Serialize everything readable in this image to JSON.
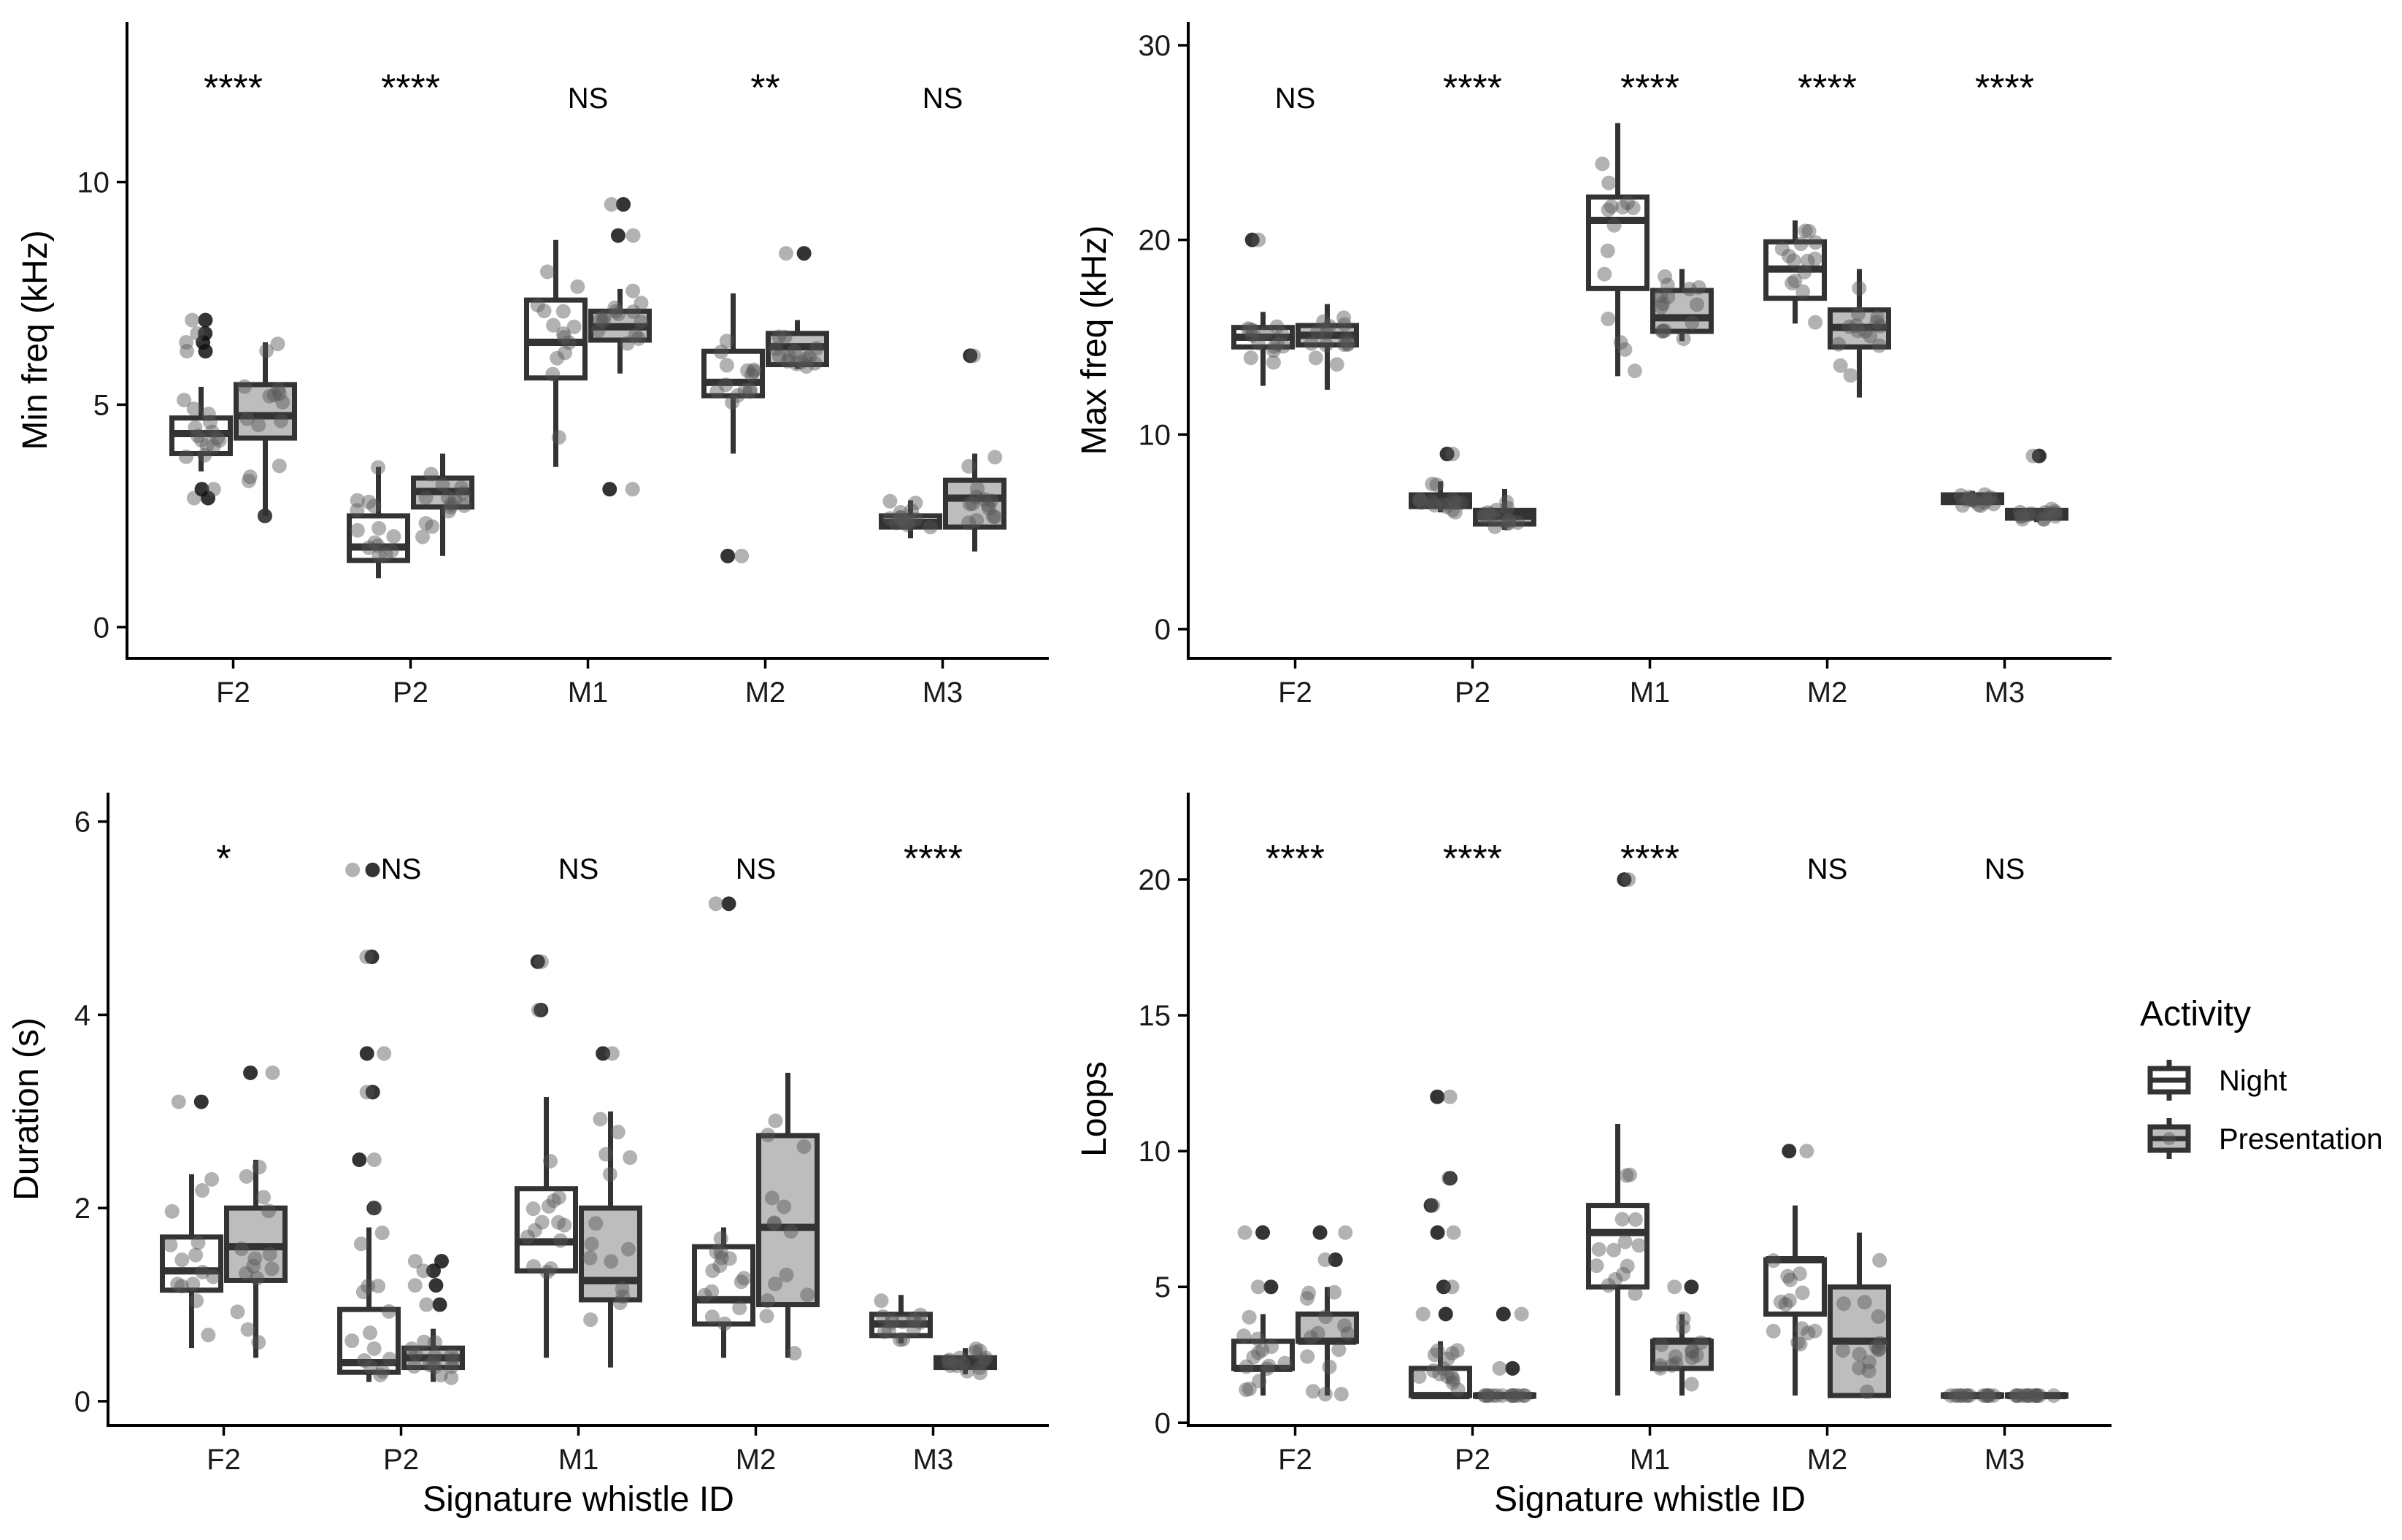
{
  "legend": {
    "title": "Activity",
    "items": [
      {
        "label": "Night",
        "fill": "#ffffff"
      },
      {
        "label": "Presentation",
        "fill": "#bdbdbd"
      }
    ]
  },
  "colors": {
    "box_stroke": "#333333",
    "point": "#555555",
    "point_opacity": 0.45,
    "night_fill": "#ffffff",
    "presentation_fill": "#bdbdbd"
  },
  "chart_data": [
    {
      "id": "min-freq",
      "type": "boxplot",
      "xlabel": "",
      "ylabel": "Min freq (kHz)",
      "ylim": [
        -0.7,
        13.6
      ],
      "yticks": [
        0,
        5,
        10
      ],
      "categories": [
        "F2",
        "P2",
        "M1",
        "M2",
        "M3"
      ],
      "significance": [
        "****",
        "****",
        "NS",
        "**",
        "NS"
      ],
      "series": [
        {
          "name": "Night",
          "boxes": [
            {
              "q1": 3.9,
              "median": 4.35,
              "q3": 4.7,
              "lo": 3.5,
              "hi": 5.4,
              "outliers": [
                2.9,
                3.1,
                6.2,
                6.4,
                6.6,
                6.9
              ]
            },
            {
              "q1": 1.5,
              "median": 1.8,
              "q3": 2.5,
              "lo": 1.1,
              "hi": 3.6,
              "outliers": []
            },
            {
              "q1": 5.6,
              "median": 6.4,
              "q3": 7.35,
              "lo": 3.6,
              "hi": 8.7,
              "outliers": []
            },
            {
              "q1": 5.2,
              "median": 5.5,
              "q3": 6.2,
              "lo": 3.9,
              "hi": 7.5,
              "outliers": [
                1.6
              ]
            },
            {
              "q1": 2.25,
              "median": 2.35,
              "q3": 2.5,
              "lo": 2.0,
              "hi": 2.85,
              "outliers": []
            }
          ]
        },
        {
          "name": "Presentation",
          "boxes": [
            {
              "q1": 4.25,
              "median": 4.75,
              "q3": 5.45,
              "lo": 2.5,
              "hi": 6.4,
              "outliers": [
                2.5
              ]
            },
            {
              "q1": 2.7,
              "median": 3.05,
              "q3": 3.35,
              "lo": 1.6,
              "hi": 3.9,
              "outliers": []
            },
            {
              "q1": 6.45,
              "median": 6.75,
              "q3": 7.1,
              "lo": 5.7,
              "hi": 7.6,
              "outliers": [
                3.1,
                8.8,
                9.5
              ]
            },
            {
              "q1": 5.9,
              "median": 6.3,
              "q3": 6.6,
              "lo": 5.8,
              "hi": 6.9,
              "outliers": [
                8.4
              ]
            },
            {
              "q1": 2.25,
              "median": 2.9,
              "q3": 3.3,
              "lo": 1.7,
              "hi": 3.9,
              "outliers": [
                6.1
              ]
            }
          ]
        }
      ]
    },
    {
      "id": "max-freq",
      "type": "boxplot",
      "xlabel": "",
      "ylabel": "Max freq (kHz)",
      "ylim": [
        -1.5,
        31.2
      ],
      "yticks": [
        0,
        10,
        20,
        30
      ],
      "categories": [
        "F2",
        "P2",
        "M1",
        "M2",
        "M3"
      ],
      "significance": [
        "NS",
        "****",
        "****",
        "****",
        "****"
      ],
      "series": [
        {
          "name": "Night",
          "boxes": [
            {
              "q1": 14.5,
              "median": 15.0,
              "q3": 15.5,
              "lo": 12.5,
              "hi": 16.3,
              "outliers": [
                20.0
              ]
            },
            {
              "q1": 6.3,
              "median": 6.6,
              "q3": 6.9,
              "lo": 6.0,
              "hi": 7.6,
              "outliers": [
                9.0
              ]
            },
            {
              "q1": 17.5,
              "median": 21.0,
              "q3": 22.2,
              "lo": 13.0,
              "hi": 26.0,
              "outliers": []
            },
            {
              "q1": 17.0,
              "median": 18.5,
              "q3": 19.9,
              "lo": 15.7,
              "hi": 21.0,
              "outliers": []
            },
            {
              "q1": 6.5,
              "median": 6.7,
              "q3": 6.9,
              "lo": 6.3,
              "hi": 7.1,
              "outliers": []
            }
          ]
        },
        {
          "name": "Presentation",
          "boxes": [
            {
              "q1": 14.6,
              "median": 15.1,
              "q3": 15.6,
              "lo": 12.3,
              "hi": 16.7,
              "outliers": []
            },
            {
              "q1": 5.4,
              "median": 5.8,
              "q3": 6.1,
              "lo": 5.1,
              "hi": 7.2,
              "outliers": []
            },
            {
              "q1": 15.3,
              "median": 16.0,
              "q3": 17.4,
              "lo": 14.8,
              "hi": 18.5,
              "outliers": []
            },
            {
              "q1": 14.5,
              "median": 15.5,
              "q3": 16.4,
              "lo": 11.9,
              "hi": 18.5,
              "outliers": []
            },
            {
              "q1": 5.7,
              "median": 5.9,
              "q3": 6.1,
              "lo": 5.5,
              "hi": 6.2,
              "outliers": [
                8.9
              ]
            }
          ]
        }
      ]
    },
    {
      "id": "duration",
      "type": "boxplot",
      "xlabel": "Signature whistle ID",
      "ylabel": "Duration (s)",
      "ylim": [
        -0.25,
        6.3
      ],
      "yticks": [
        0,
        2,
        4,
        6
      ],
      "categories": [
        "F2",
        "P2",
        "M1",
        "M2",
        "M3"
      ],
      "significance": [
        "*",
        "NS",
        "NS",
        "NS",
        "****"
      ],
      "series": [
        {
          "name": "Night",
          "boxes": [
            {
              "q1": 1.15,
              "median": 1.35,
              "q3": 1.7,
              "lo": 0.55,
              "hi": 2.35,
              "outliers": [
                3.1
              ]
            },
            {
              "q1": 0.3,
              "median": 0.4,
              "q3": 0.95,
              "lo": 0.2,
              "hi": 1.8,
              "outliers": [
                2.0,
                2.5,
                3.2,
                3.6,
                4.6,
                5.5
              ]
            },
            {
              "q1": 1.35,
              "median": 1.65,
              "q3": 2.2,
              "lo": 0.45,
              "hi": 3.15,
              "outliers": [
                4.05,
                4.55
              ]
            },
            {
              "q1": 0.8,
              "median": 1.05,
              "q3": 1.6,
              "lo": 0.45,
              "hi": 1.8,
              "outliers": [
                5.15
              ]
            },
            {
              "q1": 0.68,
              "median": 0.8,
              "q3": 0.9,
              "lo": 0.6,
              "hi": 1.1,
              "outliers": []
            }
          ]
        },
        {
          "name": "Presentation",
          "boxes": [
            {
              "q1": 1.25,
              "median": 1.6,
              "q3": 2.0,
              "lo": 0.45,
              "hi": 2.5,
              "outliers": [
                3.4
              ]
            },
            {
              "q1": 0.35,
              "median": 0.45,
              "q3": 0.55,
              "lo": 0.2,
              "hi": 0.75,
              "outliers": [
                1.0,
                1.2,
                1.35,
                1.45
              ]
            },
            {
              "q1": 1.05,
              "median": 1.25,
              "q3": 2.0,
              "lo": 0.35,
              "hi": 3.0,
              "outliers": [
                3.6
              ]
            },
            {
              "q1": 1.0,
              "median": 1.8,
              "q3": 2.75,
              "lo": 0.45,
              "hi": 3.4,
              "outliers": []
            },
            {
              "q1": 0.35,
              "median": 0.4,
              "q3": 0.45,
              "lo": 0.28,
              "hi": 0.55,
              "outliers": []
            }
          ]
        }
      ]
    },
    {
      "id": "loops",
      "type": "boxplot",
      "xlabel": "Signature whistle ID",
      "ylabel": "Loops",
      "ylim": [
        -0.1,
        23.2
      ],
      "yticks": [
        0,
        5,
        10,
        15,
        20
      ],
      "categories": [
        "F2",
        "P2",
        "M1",
        "M2",
        "M3"
      ],
      "significance": [
        "****",
        "****",
        "****",
        "NS",
        "NS"
      ],
      "series": [
        {
          "name": "Night",
          "boxes": [
            {
              "q1": 2.0,
              "median": 2.0,
              "q3": 3.0,
              "lo": 1.0,
              "hi": 4.0,
              "outliers": [
                5.0,
                7.0
              ]
            },
            {
              "q1": 1.0,
              "median": 1.0,
              "q3": 2.0,
              "lo": 1.0,
              "hi": 3.0,
              "outliers": [
                4.0,
                5.0,
                7.0,
                8.0,
                9.0,
                12.0
              ]
            },
            {
              "q1": 5.0,
              "median": 7.0,
              "q3": 8.0,
              "lo": 1.0,
              "hi": 11.0,
              "outliers": [
                20.0
              ]
            },
            {
              "q1": 4.0,
              "median": 6.0,
              "q3": 6.0,
              "lo": 1.0,
              "hi": 8.0,
              "outliers": [
                10.0
              ]
            },
            {
              "q1": 1.0,
              "median": 1.0,
              "q3": 1.0,
              "lo": 1.0,
              "hi": 1.0,
              "outliers": []
            }
          ]
        },
        {
          "name": "Presentation",
          "boxes": [
            {
              "q1": 3.0,
              "median": 3.0,
              "q3": 4.0,
              "lo": 1.0,
              "hi": 5.0,
              "outliers": [
                6.0,
                7.0
              ]
            },
            {
              "q1": 1.0,
              "median": 1.0,
              "q3": 1.0,
              "lo": 1.0,
              "hi": 1.0,
              "outliers": [
                2.0,
                4.0
              ]
            },
            {
              "q1": 2.0,
              "median": 3.0,
              "q3": 3.0,
              "lo": 1.0,
              "hi": 4.0,
              "outliers": [
                5.0
              ]
            },
            {
              "q1": 1.0,
              "median": 3.0,
              "q3": 5.0,
              "lo": 1.0,
              "hi": 7.0,
              "outliers": []
            },
            {
              "q1": 1.0,
              "median": 1.0,
              "q3": 1.0,
              "lo": 1.0,
              "hi": 1.0,
              "outliers": []
            }
          ]
        }
      ]
    }
  ]
}
